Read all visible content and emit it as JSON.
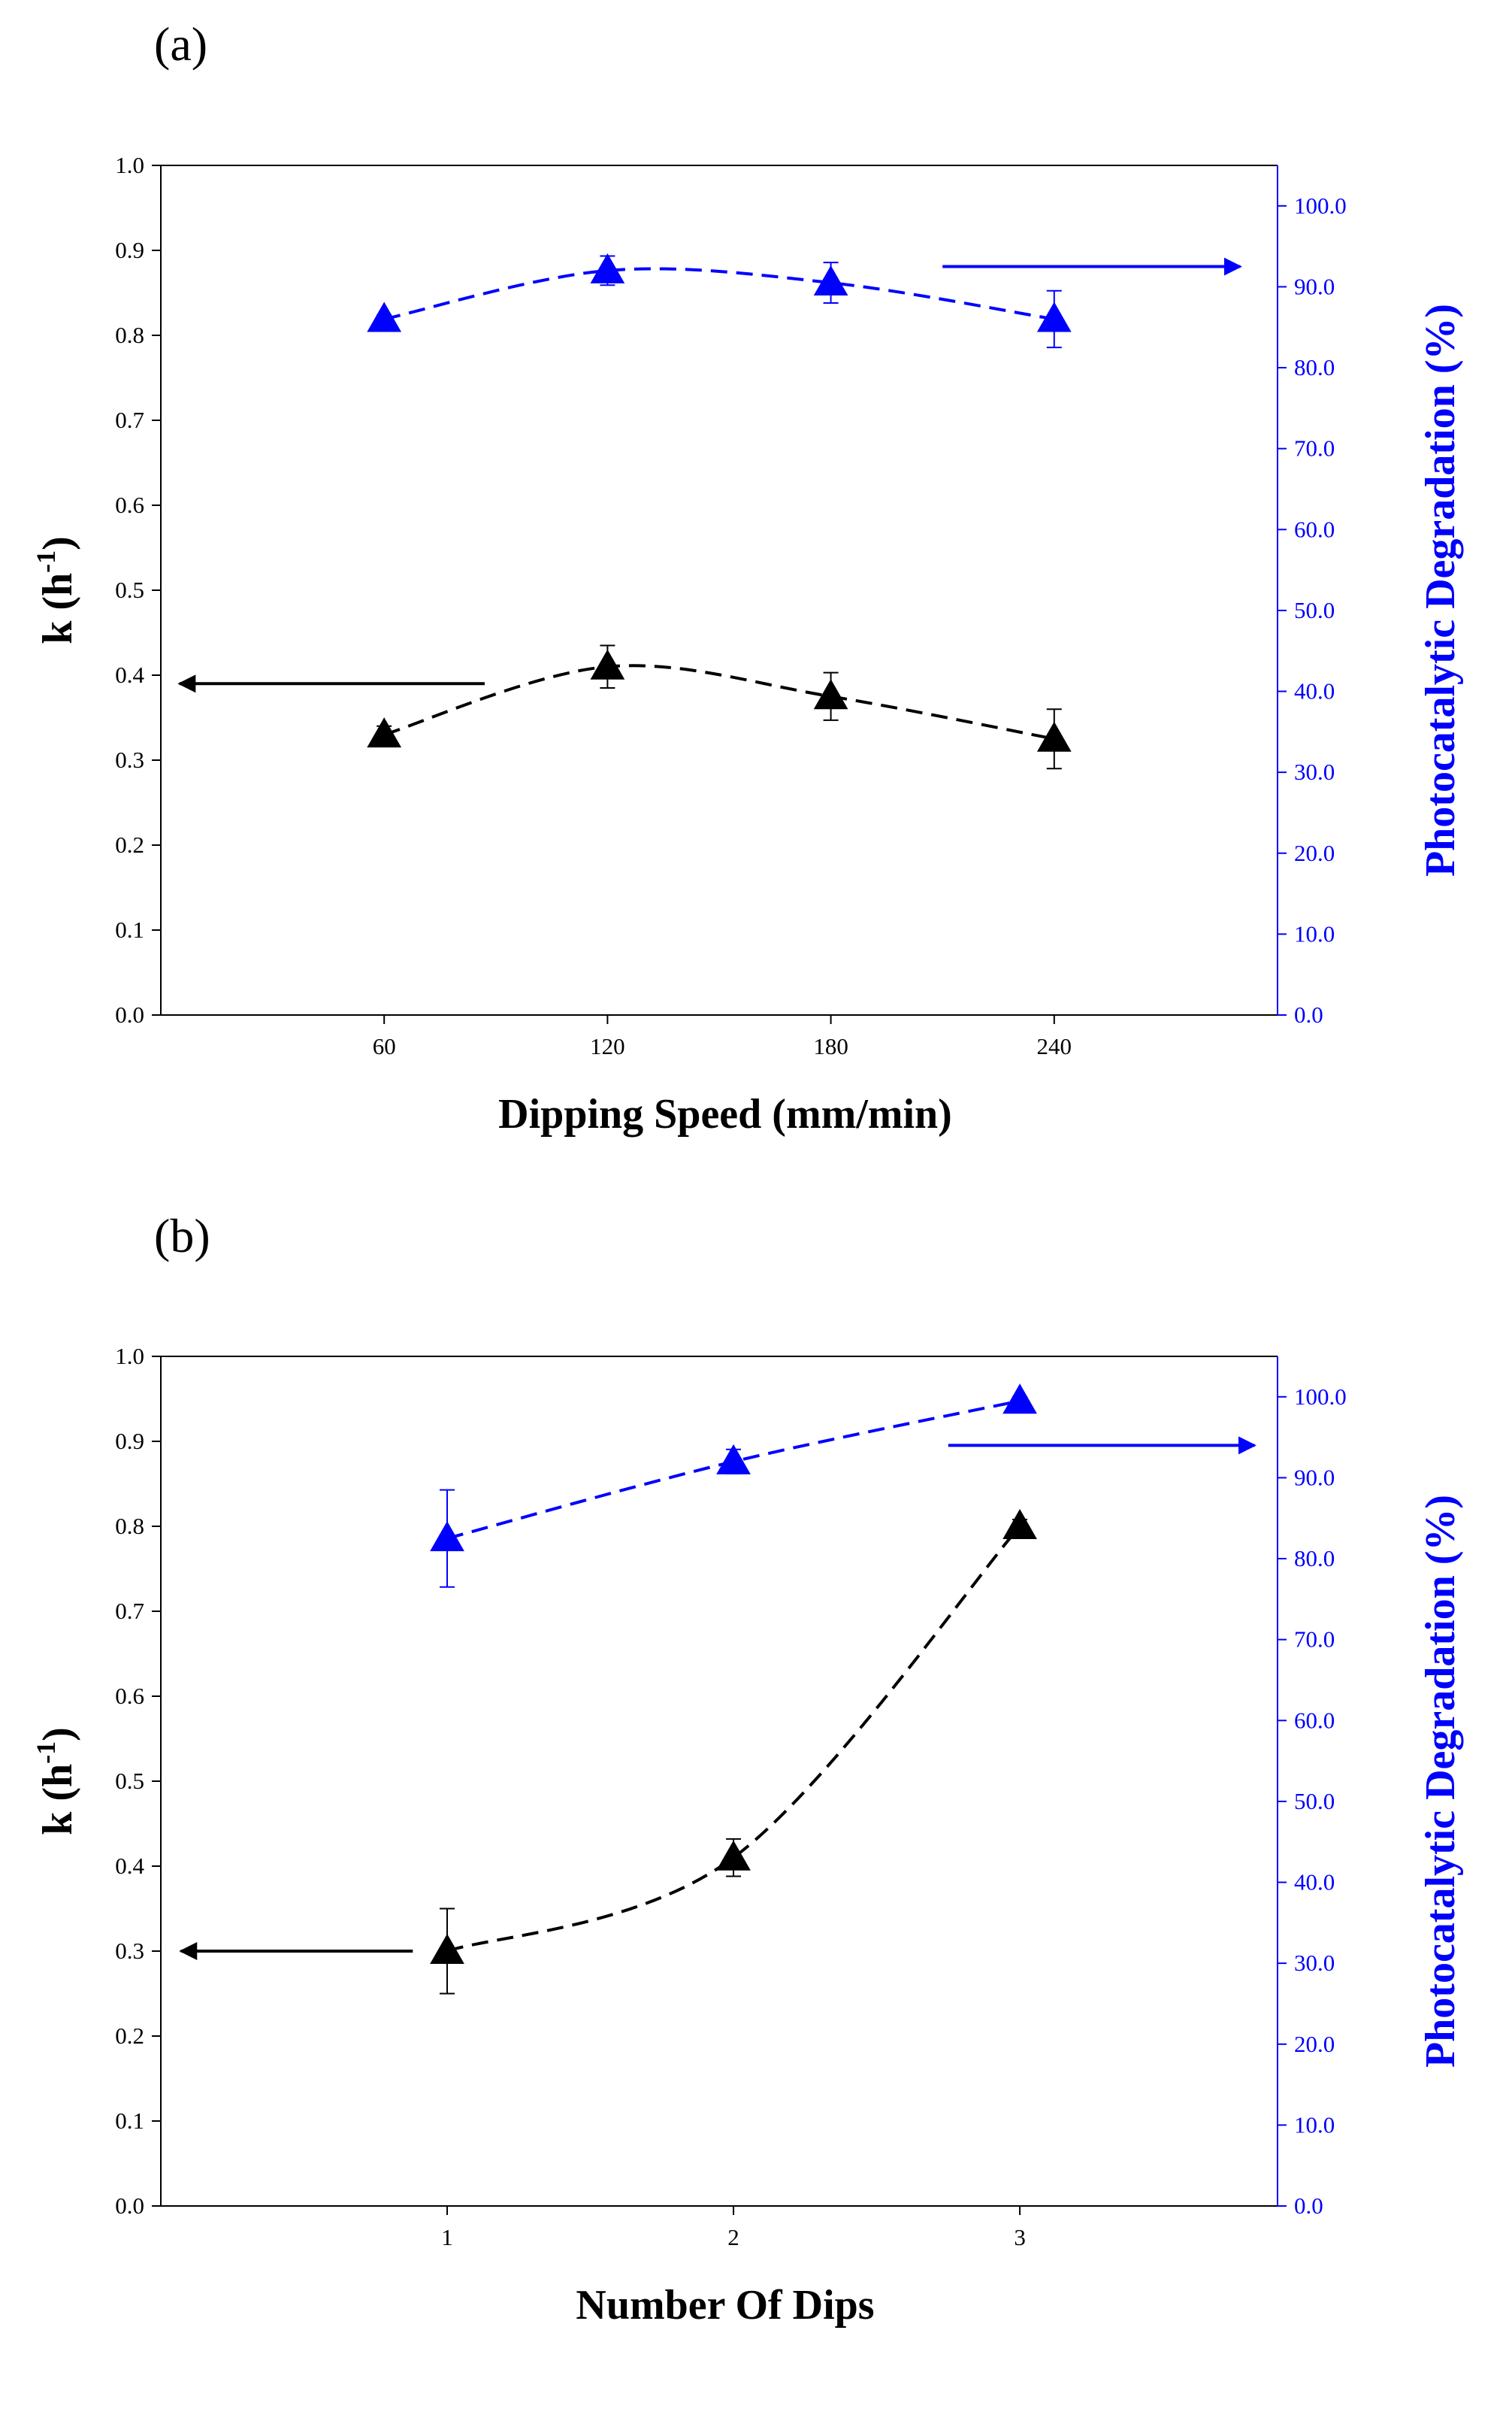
{
  "colors": {
    "k_series": "#000000",
    "degradation_series": "#0000FF",
    "degradation_axis": "#0000FF"
  },
  "chart_data": [
    {
      "panel_label": "(a)",
      "type": "line",
      "xlabel": "Dipping Speed (mm/min)",
      "ylabel_left": {
        "main": "k (h",
        "sup": "-1",
        "close": ")"
      },
      "ylabel_right": "Photocatalytic Degradation (%)",
      "x_ticks": [
        "60",
        "120",
        "180",
        "240"
      ],
      "xlim": [
        0,
        300
      ],
      "ylim_left": [
        0.0,
        1.0
      ],
      "ylim_right": [
        0.0,
        105.0
      ],
      "y_ticks_left": [
        "0.0",
        "0.1",
        "0.2",
        "0.3",
        "0.4",
        "0.5",
        "0.6",
        "0.7",
        "0.8",
        "0.9",
        "1.0"
      ],
      "y_ticks_right": [
        "0.0",
        "10.0",
        "20.0",
        "30.0",
        "40.0",
        "50.0",
        "60.0",
        "70.0",
        "80.0",
        "90.0",
        "100.0"
      ],
      "series": [
        {
          "name": "k",
          "axis": "left",
          "x": [
            60,
            120,
            180,
            240
          ],
          "values": [
            0.33,
            0.41,
            0.375,
            0.325
          ],
          "errors": [
            0.01,
            0.025,
            0.028,
            0.035
          ]
        },
        {
          "name": "Photocatalytic Degradation",
          "axis": "right",
          "x": [
            60,
            120,
            180,
            240
          ],
          "values": [
            86.0,
            92.0,
            90.5,
            86.0
          ],
          "errors": [
            0.5,
            1.8,
            2.5,
            3.5
          ]
        }
      ],
      "arrows": [
        {
          "series": "k",
          "direction": "left",
          "x_from": 87,
          "x_to": 5,
          "axis": "left",
          "y": 0.39
        },
        {
          "series": "Photocatalytic Degradation",
          "direction": "right",
          "x_from": 210,
          "x_to": 290,
          "axis": "right",
          "y": 92.5
        }
      ]
    },
    {
      "panel_label": "(b)",
      "type": "line",
      "xlabel": "Number Of Dips",
      "ylabel_left": {
        "main": "k (h",
        "sup": "-1",
        "close": ")"
      },
      "ylabel_right": "Photocatalytic Degradation (%)",
      "x_ticks": [
        "1",
        "2",
        "3"
      ],
      "xlim": [
        0.0,
        3.9
      ],
      "ylim_left": [
        0.0,
        1.0
      ],
      "ylim_right": [
        0.0,
        105.0
      ],
      "y_ticks_left": [
        "0.0",
        "0.1",
        "0.2",
        "0.3",
        "0.4",
        "0.5",
        "0.6",
        "0.7",
        "0.8",
        "0.9",
        "1.0"
      ],
      "y_ticks_right": [
        "0.0",
        "10.0",
        "20.0",
        "30.0",
        "40.0",
        "50.0",
        "60.0",
        "70.0",
        "80.0",
        "90.0",
        "100.0"
      ],
      "series": [
        {
          "name": "k",
          "axis": "left",
          "x": [
            1,
            2,
            3
          ],
          "values": [
            0.3,
            0.41,
            0.8
          ],
          "errors": [
            0.05,
            0.022,
            0.008
          ]
        },
        {
          "name": "Photocatalytic Degradation",
          "axis": "right",
          "x": [
            1,
            2,
            3
          ],
          "values": [
            82.5,
            92.0,
            99.5
          ],
          "errors": [
            6.0,
            1.5,
            0.5
          ]
        }
      ],
      "arrows": [
        {
          "series": "k",
          "direction": "left",
          "x_from": 0.88,
          "x_to": 0.07,
          "axis": "left",
          "y": 0.3
        },
        {
          "series": "Photocatalytic Degradation",
          "direction": "right",
          "x_from": 2.75,
          "x_to": 3.82,
          "axis": "right",
          "y": 94.0
        }
      ]
    }
  ]
}
